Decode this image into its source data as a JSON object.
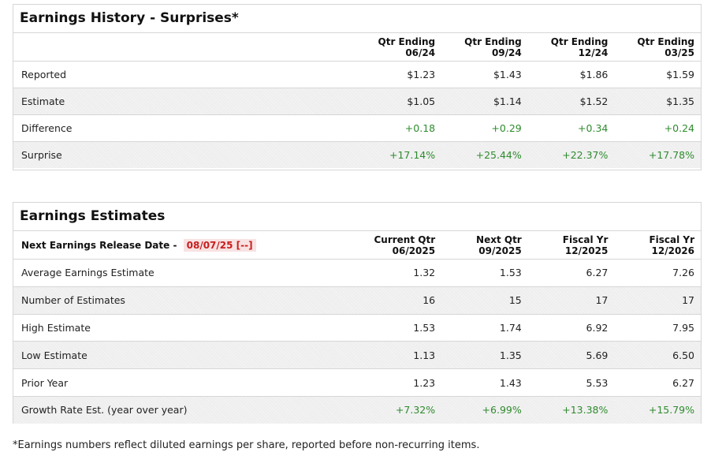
{
  "history": {
    "title": "Earnings History - Surprises*",
    "columns": [
      {
        "line1": "Qtr Ending",
        "line2": "06/24"
      },
      {
        "line1": "Qtr Ending",
        "line2": "09/24"
      },
      {
        "line1": "Qtr Ending",
        "line2": "12/24"
      },
      {
        "line1": "Qtr Ending",
        "line2": "03/25"
      }
    ],
    "rows": [
      {
        "label": "Reported",
        "values": [
          "$1.23",
          "$1.43",
          "$1.86",
          "$1.59"
        ]
      },
      {
        "label": "Estimate",
        "values": [
          "$1.05",
          "$1.14",
          "$1.52",
          "$1.35"
        ]
      },
      {
        "label": "Difference",
        "values": [
          "+0.18",
          "+0.29",
          "+0.34",
          "+0.24"
        ]
      },
      {
        "label": "Surprise",
        "values": [
          "+17.14%",
          "+25.44%",
          "+22.37%",
          "+17.78%"
        ]
      }
    ]
  },
  "estimates": {
    "title": "Earnings Estimates",
    "release_label": "Next Earnings Release Date -",
    "release_date": "08/07/25 [--]",
    "columns": [
      {
        "line1": "Current Qtr",
        "line2": "06/2025"
      },
      {
        "line1": "Next Qtr",
        "line2": "09/2025"
      },
      {
        "line1": "Fiscal Yr",
        "line2": "12/2025"
      },
      {
        "line1": "Fiscal Yr",
        "line2": "12/2026"
      }
    ],
    "rows": [
      {
        "label": "Average Earnings Estimate",
        "values": [
          "1.32",
          "1.53",
          "6.27",
          "7.26"
        ]
      },
      {
        "label": "Number of Estimates",
        "values": [
          "16",
          "15",
          "17",
          "17"
        ]
      },
      {
        "label": "High Estimate",
        "values": [
          "1.53",
          "1.74",
          "6.92",
          "7.95"
        ]
      },
      {
        "label": "Low Estimate",
        "values": [
          "1.13",
          "1.35",
          "5.69",
          "6.50"
        ]
      },
      {
        "label": "Prior Year",
        "values": [
          "1.23",
          "1.43",
          "5.53",
          "6.27"
        ]
      },
      {
        "label": "Growth Rate Est. (year over year)",
        "values": [
          "+7.32%",
          "+6.99%",
          "+13.38%",
          "+15.79%"
        ]
      }
    ]
  },
  "footnote": "*Earnings numbers reflect diluted earnings per share, reported before non-recurring items.",
  "colors": {
    "positive": "#2e8b2e",
    "release_date": "#c81e1e"
  }
}
